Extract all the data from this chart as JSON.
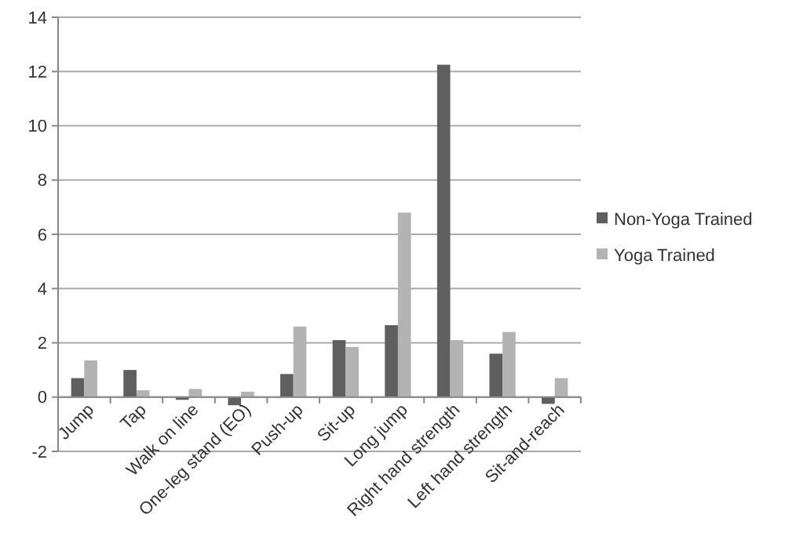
{
  "chart_data": {
    "type": "bar",
    "categories": [
      "Jump",
      "Tap",
      "Walk on line",
      "One-leg stand (EO)",
      "Push-up",
      "Sit-up",
      "Long jump",
      "Right hand strength",
      "Left hand strength",
      "Sit-and-reach"
    ],
    "series": [
      {
        "name": "Non-Yoga Trained",
        "color": "#5f5f5f",
        "values": [
          0.7,
          1.0,
          -0.1,
          -0.3,
          0.85,
          2.1,
          2.65,
          12.25,
          1.6,
          -0.25
        ]
      },
      {
        "name": "Yoga Trained",
        "color": "#b3b3b3",
        "values": [
          1.35,
          0.25,
          0.3,
          0.2,
          2.6,
          1.85,
          6.8,
          2.1,
          2.4,
          0.7
        ]
      }
    ],
    "ylim": [
      -2,
      14
    ],
    "yticks": [
      -2,
      0,
      2,
      4,
      6,
      8,
      10,
      12,
      14
    ],
    "grid": "y",
    "legend": "right"
  }
}
